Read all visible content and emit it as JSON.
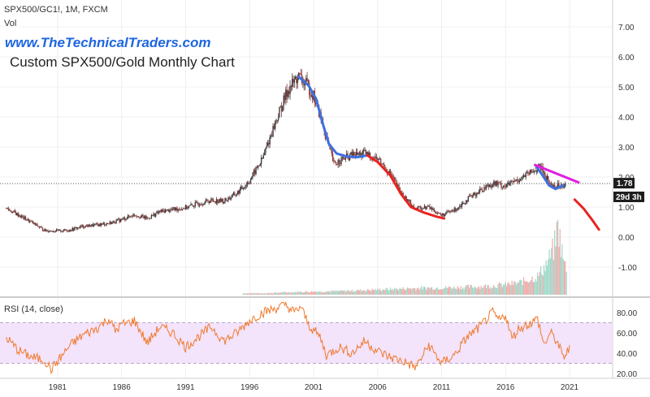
{
  "header": {
    "symbol_line": "SPX500/GC1!, 1M, FXCM",
    "volume_label": "Vol",
    "website": "www.TheTechnicalTraders.com",
    "chart_title": "Custom SPX500/Gold Monthly Chart"
  },
  "price_label": {
    "value": "1.78",
    "countdown": "29d 3h"
  },
  "rsi_pane": {
    "label": "RSI (14, close)"
  },
  "colors": {
    "up_candle": "#26a69a",
    "down_candle": "#ef5350",
    "candle_body": "#6b4c4c",
    "blue_line": "#3f6fe0",
    "red_line": "#e8241f",
    "magenta_line": "#e020e0",
    "rsi_line": "#f07a2e",
    "rsi_band": "#f3e3fb",
    "website_text": "#1e66e0"
  },
  "chart_data": [
    {
      "type": "line",
      "series_kind": "candlestick-approximation",
      "title": "Custom SPX500/Gold Monthly Chart",
      "ylabel": "",
      "ylim": [
        -2.0,
        7.5
      ],
      "yticks": [
        "7.00",
        "6.00",
        "5.00",
        "4.00",
        "3.00",
        "2.00",
        "1.00",
        "0.00",
        "-1.00"
      ],
      "xticks": [
        "1981",
        "1986",
        "1991",
        "1996",
        "2001",
        "2006",
        "2011",
        "2016",
        "2021"
      ],
      "x_start": 1976.5,
      "x_end": 2024.3,
      "grid": true,
      "price_path": [
        [
          1977.0,
          0.95
        ],
        [
          1978.0,
          0.72
        ],
        [
          1979.0,
          0.48
        ],
        [
          1980.0,
          0.22
        ],
        [
          1981.0,
          0.2
        ],
        [
          1982.0,
          0.24
        ],
        [
          1983.0,
          0.36
        ],
        [
          1984.0,
          0.4
        ],
        [
          1985.0,
          0.46
        ],
        [
          1986.0,
          0.58
        ],
        [
          1987.0,
          0.75
        ],
        [
          1988.0,
          0.62
        ],
        [
          1989.0,
          0.85
        ],
        [
          1990.0,
          0.92
        ],
        [
          1991.0,
          0.98
        ],
        [
          1992.0,
          1.12
        ],
        [
          1993.0,
          1.22
        ],
        [
          1994.0,
          1.2
        ],
        [
          1995.0,
          1.45
        ],
        [
          1996.0,
          1.88
        ],
        [
          1997.0,
          2.6
        ],
        [
          1998.0,
          3.8
        ],
        [
          1999.0,
          4.9
        ],
        [
          1999.8,
          5.35
        ],
        [
          2000.5,
          5.05
        ],
        [
          2001.0,
          4.7
        ],
        [
          2001.6,
          3.9
        ],
        [
          2002.0,
          3.3
        ],
        [
          2002.6,
          2.4
        ],
        [
          2003.0,
          2.55
        ],
        [
          2004.0,
          2.72
        ],
        [
          2005.0,
          2.78
        ],
        [
          2006.0,
          2.6
        ],
        [
          2007.0,
          2.1
        ],
        [
          2008.0,
          1.35
        ],
        [
          2009.0,
          0.95
        ],
        [
          2010.0,
          1.0
        ],
        [
          2011.0,
          0.72
        ],
        [
          2012.0,
          0.9
        ],
        [
          2013.0,
          1.25
        ],
        [
          2014.0,
          1.55
        ],
        [
          2015.0,
          1.8
        ],
        [
          2016.0,
          1.7
        ],
        [
          2017.0,
          1.92
        ],
        [
          2018.0,
          2.15
        ],
        [
          2018.7,
          2.35
        ],
        [
          2019.5,
          1.75
        ],
        [
          2020.0,
          1.7
        ],
        [
          2020.7,
          1.78
        ]
      ],
      "series": [
        {
          "kind": "blue",
          "points": [
            [
              1999.8,
              5.35
            ],
            [
              2000.6,
              5.05
            ],
            [
              2001.2,
              4.6
            ],
            [
              2001.7,
              3.8
            ],
            [
              2002.2,
              3.1
            ],
            [
              2002.8,
              2.78
            ],
            [
              2003.6,
              2.68
            ],
            [
              2004.4,
              2.66
            ],
            [
              2005.2,
              2.72
            ]
          ]
        },
        {
          "kind": "red",
          "points": [
            [
              2005.2,
              2.72
            ],
            [
              2006.0,
              2.5
            ],
            [
              2007.0,
              2.05
            ],
            [
              2007.8,
              1.45
            ],
            [
              2008.6,
              1.0
            ],
            [
              2009.6,
              0.82
            ],
            [
              2010.6,
              0.68
            ],
            [
              2011.2,
              0.62
            ]
          ]
        },
        {
          "kind": "blue",
          "points": [
            [
              2018.4,
              2.35
            ],
            [
              2018.9,
              2.05
            ],
            [
              2019.4,
              1.72
            ],
            [
              2019.9,
              1.6
            ],
            [
              2020.5,
              1.72
            ]
          ]
        },
        {
          "kind": "magenta",
          "points": [
            [
              2018.3,
              2.4
            ],
            [
              2021.7,
              1.82
            ]
          ]
        },
        {
          "kind": "red",
          "points": [
            [
              2021.4,
              1.25
            ],
            [
              2022.1,
              0.95
            ],
            [
              2022.8,
              0.55
            ],
            [
              2023.3,
              0.25
            ]
          ]
        }
      ],
      "reference_level": 1.78,
      "volume": [
        [
          1997.0,
          0.02
        ],
        [
          2000.0,
          0.04
        ],
        [
          2003.0,
          0.05
        ],
        [
          2006.0,
          0.07
        ],
        [
          2009.0,
          0.09
        ],
        [
          2012.0,
          0.1
        ],
        [
          2015.0,
          0.12
        ],
        [
          2017.0,
          0.16
        ],
        [
          2018.5,
          0.25
        ],
        [
          2019.3,
          0.45
        ],
        [
          2019.8,
          0.65
        ],
        [
          2020.1,
          0.95
        ],
        [
          2020.3,
          0.7
        ],
        [
          2020.6,
          0.4
        ]
      ]
    },
    {
      "type": "line",
      "title": "RSI (14, close)",
      "ylim": [
        18,
        92
      ],
      "yticks": [
        "80.00",
        "60.00",
        "40.00",
        "20.00"
      ],
      "band": [
        30,
        70
      ],
      "x_start": 1976.5,
      "x_end": 2024.3,
      "rsi_path": [
        [
          1977.0,
          55
        ],
        [
          1978.0,
          42
        ],
        [
          1979.0,
          36
        ],
        [
          1980.0,
          33
        ],
        [
          1980.5,
          24
        ],
        [
          1981.0,
          32
        ],
        [
          1982.0,
          48
        ],
        [
          1983.0,
          58
        ],
        [
          1984.0,
          64
        ],
        [
          1985.0,
          74
        ],
        [
          1985.5,
          62
        ],
        [
          1986.0,
          68
        ],
        [
          1987.0,
          72
        ],
        [
          1988.0,
          50
        ],
        [
          1989.0,
          66
        ],
        [
          1990.0,
          60
        ],
        [
          1991.0,
          46
        ],
        [
          1992.0,
          56
        ],
        [
          1993.0,
          66
        ],
        [
          1994.0,
          52
        ],
        [
          1995.0,
          60
        ],
        [
          1996.0,
          72
        ],
        [
          1997.0,
          80
        ],
        [
          1998.0,
          84
        ],
        [
          1998.8,
          88
        ],
        [
          1999.5,
          80
        ],
        [
          2000.0,
          86
        ],
        [
          2000.6,
          68
        ],
        [
          2001.5,
          56
        ],
        [
          2002.0,
          38
        ],
        [
          2003.0,
          46
        ],
        [
          2004.0,
          40
        ],
        [
          2005.0,
          52
        ],
        [
          2006.0,
          42
        ],
        [
          2007.0,
          36
        ],
        [
          2008.0,
          32
        ],
        [
          2009.0,
          26
        ],
        [
          2010.0,
          48
        ],
        [
          2011.0,
          30
        ],
        [
          2012.0,
          38
        ],
        [
          2013.0,
          56
        ],
        [
          2014.0,
          66
        ],
        [
          2015.0,
          80
        ],
        [
          2015.5,
          72
        ],
        [
          2016.0,
          78
        ],
        [
          2016.5,
          54
        ],
        [
          2017.0,
          64
        ],
        [
          2018.0,
          70
        ],
        [
          2018.5,
          74
        ],
        [
          2019.0,
          48
        ],
        [
          2019.5,
          60
        ],
        [
          2020.0,
          52
        ],
        [
          2020.5,
          36
        ],
        [
          2021.0,
          44
        ]
      ]
    }
  ]
}
